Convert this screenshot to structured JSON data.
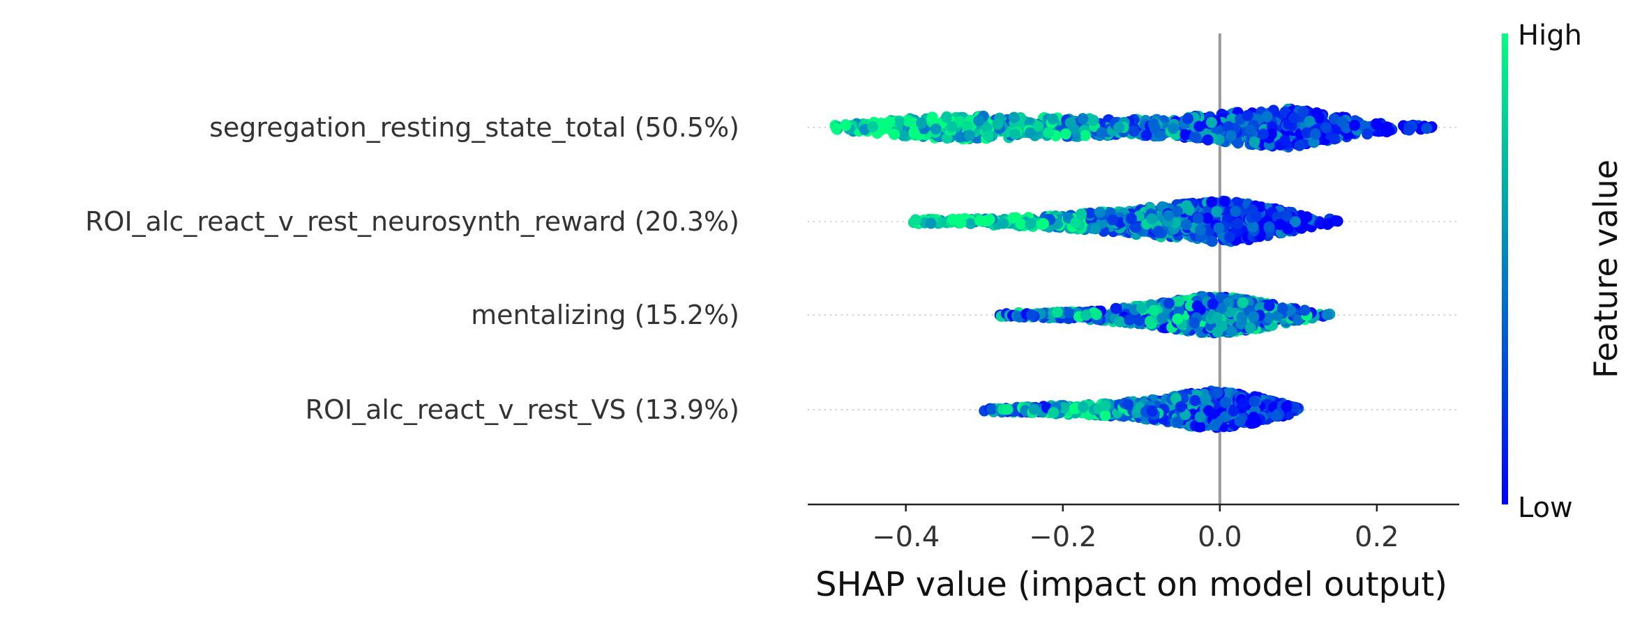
{
  "chart_data": {
    "type": "scatter",
    "subtype": "shap-beeswarm",
    "title": "",
    "xlabel": "SHAP value (impact on model output)",
    "ylabel": "",
    "xlim": [
      -0.525,
      0.305
    ],
    "xticks": [
      -0.4,
      -0.2,
      0.0,
      0.2
    ],
    "xtick_labels": [
      "−0.4",
      "−0.2",
      "0.0",
      "0.2"
    ],
    "grid": false,
    "zero_line": 0.0,
    "features": [
      {
        "label": "segregation_resting_state_total (50.5%)",
        "min": -0.49,
        "max": 0.27,
        "density": [
          {
            "x": -0.49,
            "h": 0.05
          },
          {
            "x": -0.45,
            "h": 0.1
          },
          {
            "x": -0.4,
            "h": 0.18
          },
          {
            "x": -0.34,
            "h": 0.25
          },
          {
            "x": -0.28,
            "h": 0.24
          },
          {
            "x": -0.2,
            "h": 0.2
          },
          {
            "x": -0.12,
            "h": 0.17
          },
          {
            "x": -0.06,
            "h": 0.19
          },
          {
            "x": 0.0,
            "h": 0.3
          },
          {
            "x": 0.05,
            "h": 0.38
          },
          {
            "x": 0.09,
            "h": 0.42
          },
          {
            "x": 0.13,
            "h": 0.3
          },
          {
            "x": 0.18,
            "h": 0.15
          },
          {
            "x": 0.23,
            "h": 0.07
          },
          {
            "x": 0.27,
            "h": 0.03
          }
        ],
        "color_trend": "high-left"
      },
      {
        "label": "ROI_alc_react_v_rest_neurosynth_reward (20.3%)",
        "min": -0.39,
        "max": 0.15,
        "density": [
          {
            "x": -0.39,
            "h": 0.04
          },
          {
            "x": -0.33,
            "h": 0.06
          },
          {
            "x": -0.27,
            "h": 0.08
          },
          {
            "x": -0.2,
            "h": 0.13
          },
          {
            "x": -0.14,
            "h": 0.22
          },
          {
            "x": -0.08,
            "h": 0.32
          },
          {
            "x": -0.03,
            "h": 0.4
          },
          {
            "x": 0.01,
            "h": 0.44
          },
          {
            "x": 0.05,
            "h": 0.36
          },
          {
            "x": 0.09,
            "h": 0.22
          },
          {
            "x": 0.12,
            "h": 0.1
          },
          {
            "x": 0.15,
            "h": 0.03
          }
        ],
        "color_trend": "high-left"
      },
      {
        "label": "mentalizing (15.2%)",
        "min": -0.28,
        "max": 0.14,
        "density": [
          {
            "x": -0.28,
            "h": 0.04
          },
          {
            "x": -0.22,
            "h": 0.06
          },
          {
            "x": -0.16,
            "h": 0.1
          },
          {
            "x": -0.1,
            "h": 0.2
          },
          {
            "x": -0.05,
            "h": 0.32
          },
          {
            "x": -0.02,
            "h": 0.4
          },
          {
            "x": 0.01,
            "h": 0.38
          },
          {
            "x": 0.05,
            "h": 0.28
          },
          {
            "x": 0.09,
            "h": 0.16
          },
          {
            "x": 0.12,
            "h": 0.07
          },
          {
            "x": 0.14,
            "h": 0.03
          }
        ],
        "color_trend": "mixed"
      },
      {
        "label": "ROI_alc_react_v_rest_VS (13.9%)",
        "min": -0.3,
        "max": 0.1,
        "density": [
          {
            "x": -0.3,
            "h": 0.04
          },
          {
            "x": -0.25,
            "h": 0.06
          },
          {
            "x": -0.19,
            "h": 0.1
          },
          {
            "x": -0.13,
            "h": 0.14
          },
          {
            "x": -0.08,
            "h": 0.22
          },
          {
            "x": -0.04,
            "h": 0.34
          },
          {
            "x": -0.01,
            "h": 0.4
          },
          {
            "x": 0.03,
            "h": 0.34
          },
          {
            "x": 0.06,
            "h": 0.22
          },
          {
            "x": 0.09,
            "h": 0.1
          },
          {
            "x": 0.1,
            "h": 0.04
          }
        ],
        "color_trend": "high-left-low-edges"
      }
    ],
    "colorbar": {
      "title": "Feature value",
      "high_label": "High",
      "low_label": "Low",
      "high_color": "#00ff80",
      "low_color": "#0000ff"
    }
  }
}
